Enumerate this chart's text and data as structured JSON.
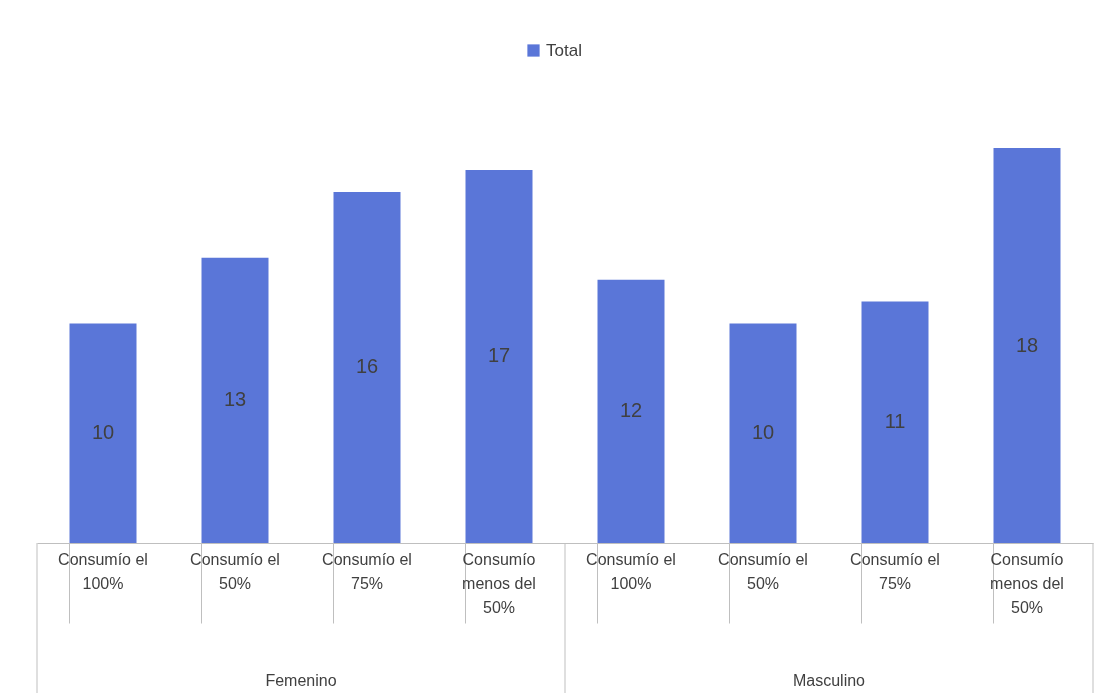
{
  "chart_data": {
    "type": "bar",
    "categories": [
      "Consumío el 100%",
      "Consumío el 50%",
      "Consumío el 75%",
      "Consumío menos del 50%",
      "Consumío el 100%",
      "Consumío el 50%",
      "Consumío el 75%",
      "Consumío menos del 50%"
    ],
    "series": [
      {
        "name": "Total",
        "color": "#5a76d8",
        "values": [
          10,
          13,
          16,
          17,
          12,
          10,
          11,
          18
        ]
      }
    ],
    "data_labels": true,
    "legend": "top",
    "grid": false,
    "annotations": [
      "Femenino",
      "Masculino"
    ]
  }
}
